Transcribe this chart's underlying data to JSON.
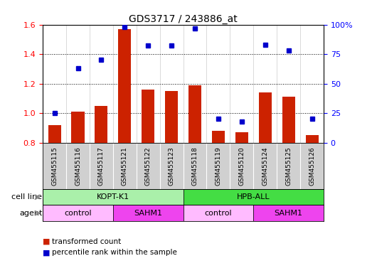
{
  "title": "GDS3717 / 243886_at",
  "samples": [
    "GSM455115",
    "GSM455116",
    "GSM455117",
    "GSM455121",
    "GSM455122",
    "GSM455123",
    "GSM455118",
    "GSM455119",
    "GSM455120",
    "GSM455124",
    "GSM455125",
    "GSM455126"
  ],
  "transformed_count": [
    0.92,
    1.01,
    1.05,
    1.57,
    1.16,
    1.15,
    1.19,
    0.88,
    0.87,
    1.14,
    1.11,
    0.85
  ],
  "percentile_rank": [
    25,
    63,
    70,
    98,
    82,
    82,
    97,
    20,
    18,
    83,
    78,
    20
  ],
  "bar_color": "#cc2200",
  "dot_color": "#0000cc",
  "ylim_left": [
    0.8,
    1.6
  ],
  "ylim_right": [
    0,
    100
  ],
  "yticks_left": [
    0.8,
    1.0,
    1.2,
    1.4,
    1.6
  ],
  "yticks_right": [
    0,
    25,
    50,
    75,
    100
  ],
  "ytick_labels_right": [
    "0",
    "25",
    "50",
    "75",
    "100%"
  ],
  "cell_line_groups": [
    {
      "label": "KOPT-K1",
      "start": 0,
      "end": 6,
      "color": "#aaf0aa"
    },
    {
      "label": "HPB-ALL",
      "start": 6,
      "end": 12,
      "color": "#44dd44"
    }
  ],
  "agent_groups": [
    {
      "label": "control",
      "start": 0,
      "end": 3,
      "color": "#ffbbff"
    },
    {
      "label": "SAHM1",
      "start": 3,
      "end": 6,
      "color": "#ee44ee"
    },
    {
      "label": "control",
      "start": 6,
      "end": 9,
      "color": "#ffbbff"
    },
    {
      "label": "SAHM1",
      "start": 9,
      "end": 12,
      "color": "#ee44ee"
    }
  ],
  "legend_items": [
    {
      "label": "transformed count",
      "color": "#cc2200"
    },
    {
      "label": "percentile rank within the sample",
      "color": "#0000cc"
    }
  ],
  "cell_line_label": "cell line",
  "agent_label": "agent",
  "xtick_bg": "#d0d0d0",
  "dotted_lines": [
    0.8,
    1.0,
    1.2,
    1.4
  ]
}
